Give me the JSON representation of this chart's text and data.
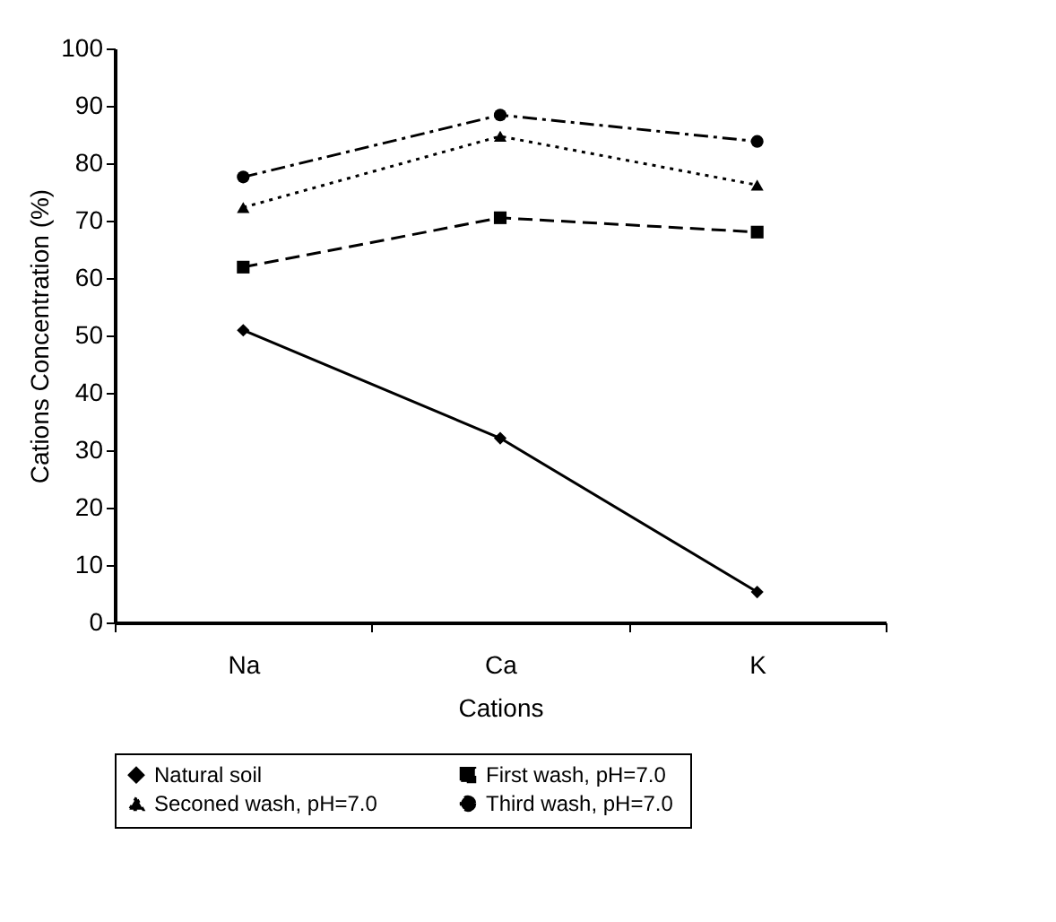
{
  "chart_data": {
    "type": "line",
    "xlabel": "Cations",
    "ylabel": "Cations Concentration (%)",
    "categories": [
      "Na",
      "Ca",
      "K"
    ],
    "series": [
      {
        "name": "Natural soil",
        "color": "#000000",
        "values": [
          50.9,
          32.1,
          5.3
        ],
        "marker": "diamond",
        "line_style": "solid"
      },
      {
        "name": "First wash,  pH=7.0",
        "color": "#000000",
        "values": [
          61.9,
          70.5,
          68.0
        ],
        "marker": "square",
        "line_style": "dashed"
      },
      {
        "name": "Seconed wash,  pH=7.0",
        "color": "#000000",
        "values": [
          72.3,
          84.7,
          76.2
        ],
        "marker": "triangle",
        "line_style": "dotted"
      },
      {
        "name": "Third wash,  pH=7.0",
        "color": "#000000",
        "values": [
          77.6,
          88.4,
          83.8
        ],
        "marker": "circle",
        "line_style": "dashdot"
      }
    ],
    "ylim": [
      0,
      100
    ],
    "yticks": [
      0,
      10,
      20,
      30,
      40,
      50,
      60,
      70,
      80,
      90,
      100
    ],
    "grid": false,
    "legend": "bottom"
  }
}
